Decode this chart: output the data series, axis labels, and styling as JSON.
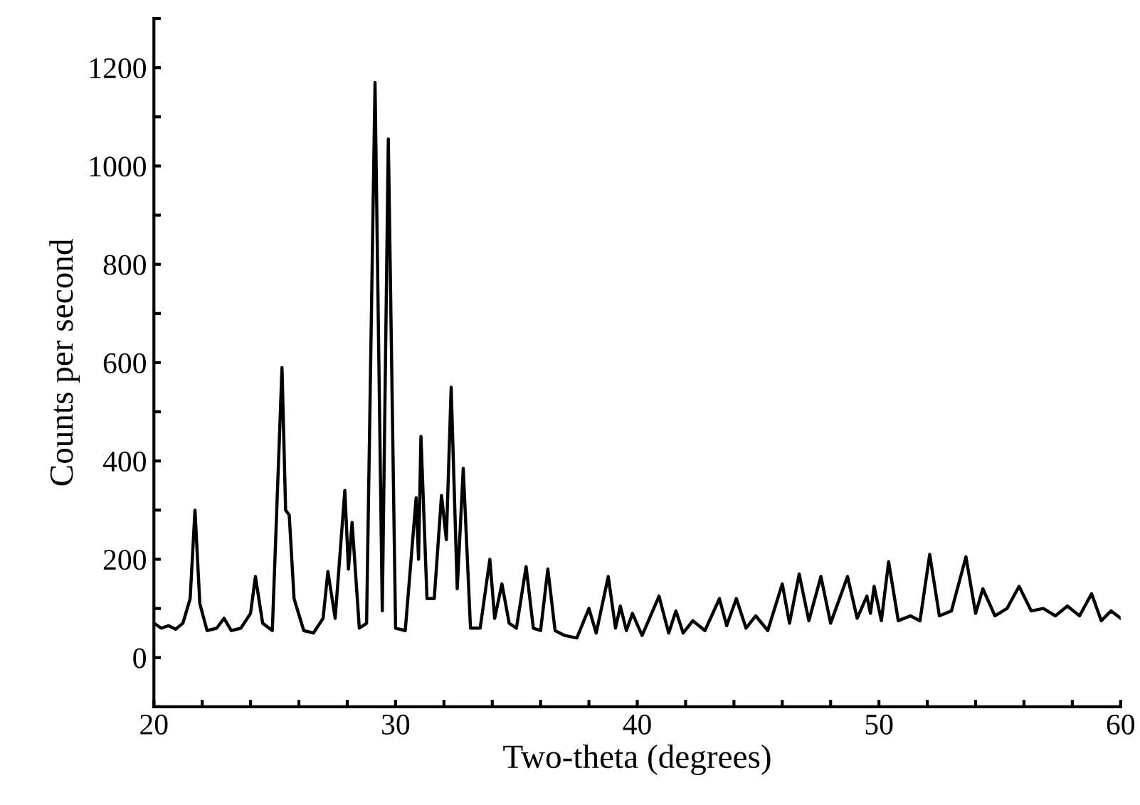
{
  "chart_data": {
    "type": "line",
    "xlabel": "Two-theta (degrees)",
    "ylabel": "Counts per second",
    "xlim": [
      20,
      60
    ],
    "ylim": [
      -100,
      1300
    ],
    "xticks": [
      20,
      {
        "value": 22,
        "label": null
      },
      {
        "value": 24,
        "label": null
      },
      {
        "value": 26,
        "label": null
      },
      {
        "value": 28,
        "label": null
      },
      30,
      {
        "value": 32,
        "label": null
      },
      {
        "value": 34,
        "label": null
      },
      {
        "value": 36,
        "label": null
      },
      {
        "value": 38,
        "label": null
      },
      40,
      {
        "value": 42,
        "label": null
      },
      {
        "value": 44,
        "label": null
      },
      {
        "value": 46,
        "label": null
      },
      {
        "value": 48,
        "label": null
      },
      50,
      {
        "value": 52,
        "label": null
      },
      {
        "value": 54,
        "label": null
      },
      {
        "value": 56,
        "label": null
      },
      {
        "value": 58,
        "label": null
      },
      60
    ],
    "yticks": [
      {
        "value": -100,
        "label": null
      },
      0,
      {
        "value": 100,
        "label": null
      },
      200,
      {
        "value": 300,
        "label": null
      },
      400,
      {
        "value": 500,
        "label": null
      },
      600,
      {
        "value": 700,
        "label": null
      },
      800,
      {
        "value": 900,
        "label": null
      },
      1000,
      {
        "value": 1100,
        "label": null
      },
      1200,
      {
        "value": 1300,
        "label": null
      }
    ],
    "grid": false,
    "legend": false,
    "marker": "none",
    "line_style": "solid",
    "series": [
      {
        "color": "#000000",
        "x": [
          20.0,
          20.3,
          20.6,
          20.9,
          21.2,
          21.5,
          21.7,
          21.9,
          22.2,
          22.6,
          22.9,
          23.2,
          23.6,
          24.0,
          24.2,
          24.5,
          24.9,
          25.3,
          25.45,
          25.6,
          25.8,
          26.2,
          26.6,
          27.0,
          27.2,
          27.5,
          27.9,
          28.05,
          28.2,
          28.5,
          28.8,
          29.15,
          29.45,
          29.7,
          30.0,
          30.4,
          30.85,
          30.95,
          31.05,
          31.3,
          31.6,
          31.9,
          32.1,
          32.3,
          32.55,
          32.8,
          33.1,
          33.5,
          33.9,
          34.1,
          34.4,
          34.7,
          35.0,
          35.4,
          35.7,
          36.0,
          36.3,
          36.6,
          37.0,
          37.5,
          38.0,
          38.3,
          38.8,
          39.1,
          39.3,
          39.55,
          39.8,
          40.2,
          40.9,
          41.3,
          41.6,
          41.9,
          42.3,
          42.8,
          43.4,
          43.7,
          44.1,
          44.5,
          44.9,
          45.4,
          46.0,
          46.3,
          46.7,
          47.1,
          47.6,
          48.0,
          48.7,
          49.1,
          49.5,
          49.65,
          49.8,
          50.1,
          50.4,
          50.8,
          51.3,
          51.7,
          52.1,
          52.5,
          53.0,
          53.6,
          54.0,
          54.3,
          54.8,
          55.3,
          55.8,
          56.3,
          56.8,
          57.3,
          57.8,
          58.3,
          58.8,
          59.2,
          59.6,
          60.0
        ],
        "values": [
          70,
          60,
          65,
          58,
          70,
          120,
          300,
          110,
          55,
          60,
          80,
          55,
          60,
          90,
          165,
          70,
          55,
          590,
          300,
          290,
          120,
          55,
          50,
          80,
          175,
          80,
          340,
          180,
          275,
          60,
          70,
          1170,
          95,
          1055,
          60,
          55,
          325,
          200,
          450,
          120,
          120,
          330,
          240,
          550,
          140,
          385,
          60,
          60,
          200,
          80,
          150,
          70,
          60,
          185,
          60,
          55,
          180,
          55,
          45,
          40,
          100,
          50,
          165,
          60,
          105,
          55,
          90,
          45,
          125,
          50,
          95,
          50,
          75,
          55,
          120,
          65,
          120,
          60,
          85,
          55,
          150,
          70,
          170,
          75,
          165,
          70,
          165,
          80,
          125,
          90,
          145,
          75,
          195,
          75,
          85,
          75,
          210,
          85,
          95,
          205,
          90,
          140,
          85,
          100,
          145,
          95,
          100,
          85,
          105,
          85,
          130,
          75,
          95,
          80
        ]
      }
    ]
  }
}
